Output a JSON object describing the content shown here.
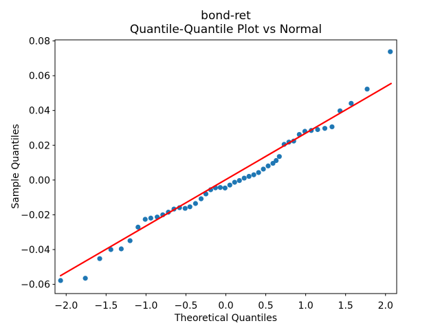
{
  "chart_data": {
    "type": "scatter",
    "title": "bond-ret",
    "subtitle": "Quantile-Quantile Plot vs Normal",
    "xlabel": "Theoretical Quantiles",
    "ylabel": "Sample Quantiles",
    "xlim": [
      -2.14,
      2.14
    ],
    "ylim": [
      -0.0653,
      0.0806
    ],
    "grid": false,
    "legend": "none",
    "x_ticks": {
      "values": [
        -2.0,
        -1.5,
        -1.0,
        -0.5,
        0.0,
        0.5,
        1.0,
        1.5,
        2.0
      ],
      "labels": [
        "−2.0",
        "−1.5",
        "−1.0",
        "−0.5",
        "0.0",
        "0.5",
        "1.0",
        "1.5",
        "2.0"
      ]
    },
    "y_ticks": {
      "values": [
        0.08,
        0.06,
        0.04,
        0.02,
        0.0,
        -0.02,
        -0.04,
        -0.06
      ],
      "labels": [
        "0.08",
        "0.06",
        "0.04",
        "0.02",
        "0.00",
        "−0.02",
        "−0.04",
        "−0.06"
      ]
    },
    "series": [
      {
        "name": "sample-vs-normal-quantiles",
        "marker_color": "#1f77b4",
        "points": [
          [
            -2.07,
            -0.0578
          ],
          [
            -1.76,
            -0.0565
          ],
          [
            -1.58,
            -0.0452
          ],
          [
            -1.44,
            -0.04
          ],
          [
            -1.31,
            -0.0396
          ],
          [
            -1.2,
            -0.0349
          ],
          [
            -1.1,
            -0.0271
          ],
          [
            -1.01,
            -0.0226
          ],
          [
            -0.94,
            -0.0219
          ],
          [
            -0.86,
            -0.0213
          ],
          [
            -0.79,
            -0.02
          ],
          [
            -0.72,
            -0.0185
          ],
          [
            -0.65,
            -0.0167
          ],
          [
            -0.58,
            -0.0159
          ],
          [
            -0.51,
            -0.0163
          ],
          [
            -0.45,
            -0.0154
          ],
          [
            -0.38,
            -0.0135
          ],
          [
            -0.31,
            -0.0108
          ],
          [
            -0.25,
            -0.008
          ],
          [
            -0.19,
            -0.0056
          ],
          [
            -0.13,
            -0.0045
          ],
          [
            -0.07,
            -0.0043
          ],
          [
            -0.01,
            -0.0046
          ],
          [
            0.05,
            -0.0029
          ],
          [
            0.11,
            -0.0013
          ],
          [
            0.17,
            -0.0003
          ],
          [
            0.23,
            0.0011
          ],
          [
            0.29,
            0.0021
          ],
          [
            0.35,
            0.003
          ],
          [
            0.41,
            0.0043
          ],
          [
            0.47,
            0.0063
          ],
          [
            0.53,
            0.0081
          ],
          [
            0.59,
            0.0096
          ],
          [
            0.63,
            0.0112
          ],
          [
            0.67,
            0.0135
          ],
          [
            0.73,
            0.0205
          ],
          [
            0.79,
            0.0218
          ],
          [
            0.85,
            0.0224
          ],
          [
            0.92,
            0.0262
          ],
          [
            0.99,
            0.028
          ],
          [
            1.07,
            0.0285
          ],
          [
            1.15,
            0.029
          ],
          [
            1.24,
            0.0297
          ],
          [
            1.33,
            0.0306
          ],
          [
            1.43,
            0.0398
          ],
          [
            1.57,
            0.0441
          ],
          [
            1.77,
            0.0523
          ],
          [
            2.06,
            0.0738
          ]
        ]
      }
    ],
    "ref_line": {
      "name": "normal-fit-line",
      "color": "#ff0000",
      "x1": -2.07,
      "y1": -0.055,
      "x2": 2.07,
      "y2": 0.0555
    }
  }
}
